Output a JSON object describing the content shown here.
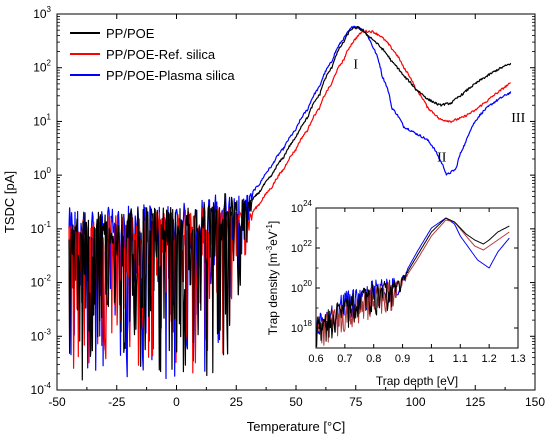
{
  "chart_data": [
    {
      "type": "line",
      "xlabel": "Temperature [°C]",
      "ylabel": "TSDC [pA]",
      "xlim": [
        -50,
        150
      ],
      "ylim_log10": [
        -4,
        3
      ],
      "log_y": true,
      "grid": false,
      "legend_position": "top-left",
      "x_ticks": [
        "-50",
        "-25",
        "0",
        "25",
        "50",
        "75",
        "100",
        "125",
        "150"
      ],
      "y_ticks": [
        {
          "base": "10",
          "exp": "-4"
        },
        {
          "base": "10",
          "exp": "-3"
        },
        {
          "base": "10",
          "exp": "-2"
        },
        {
          "base": "10",
          "exp": "-1"
        },
        {
          "base": "10",
          "exp": "0"
        },
        {
          "base": "10",
          "exp": "1"
        },
        {
          "base": "10",
          "exp": "2"
        },
        {
          "base": "10",
          "exp": "3"
        }
      ],
      "annotations": [
        {
          "text": "I",
          "x": 75,
          "y": 120
        },
        {
          "text": "II",
          "x": 111,
          "y": 2.2
        },
        {
          "text": "III",
          "x": 143,
          "y": 12
        }
      ],
      "series": [
        {
          "name": "PP/POE",
          "color": "#000000",
          "x": [
            -45,
            -30,
            -15,
            0,
            10,
            15,
            20,
            25,
            30,
            35,
            40,
            45,
            50,
            55,
            60,
            65,
            70,
            73,
            76,
            80,
            85,
            90,
            95,
            100,
            105,
            110,
            115,
            120,
            125,
            130,
            135,
            140
          ],
          "y": [
            0.06,
            0.06,
            0.07,
            0.07,
            0.09,
            0.1,
            0.13,
            0.17,
            0.26,
            0.5,
            1.0,
            2.2,
            5.0,
            12,
            32,
            100,
            300,
            520,
            560,
            400,
            250,
            130,
            70,
            40,
            26,
            20,
            22,
            33,
            50,
            70,
            95,
            120
          ],
          "noise_floor": 0.00015
        },
        {
          "name": "PP/POE-Ref. silica",
          "color": "#ff0000",
          "x": [
            -45,
            -30,
            -15,
            0,
            10,
            20,
            25,
            30,
            35,
            40,
            45,
            50,
            55,
            60,
            65,
            70,
            75,
            78,
            82,
            85,
            90,
            95,
            100,
            105,
            110,
            115,
            120,
            125,
            130,
            135,
            140
          ],
          "y": [
            0.05,
            0.05,
            0.06,
            0.06,
            0.07,
            0.09,
            0.11,
            0.15,
            0.3,
            0.6,
            1.3,
            3.0,
            7.0,
            18,
            50,
            140,
            350,
            480,
            470,
            400,
            230,
            100,
            40,
            18,
            11,
            10,
            12,
            16,
            24,
            36,
            52
          ],
          "noise_floor": 0.0002
        },
        {
          "name": "PP/POE-Plasma silica",
          "color": "#0000ff",
          "x": [
            -45,
            -30,
            -15,
            0,
            10,
            20,
            25,
            30,
            35,
            40,
            45,
            50,
            55,
            60,
            65,
            70,
            74,
            78,
            82,
            86,
            90,
            95,
            100,
            105,
            110,
            113,
            117,
            121,
            125,
            130,
            135,
            140
          ],
          "y": [
            0.07,
            0.07,
            0.08,
            0.08,
            0.1,
            0.14,
            0.2,
            0.35,
            0.7,
            1.5,
            3.2,
            7.0,
            17,
            45,
            130,
            350,
            600,
            520,
            250,
            70,
            18,
            8,
            6,
            4.5,
            2.0,
            1.0,
            1.3,
            4.0,
            10,
            18,
            26,
            35
          ],
          "noise_floor": 0.00015
        }
      ]
    },
    {
      "type": "line",
      "xlabel": "Trap depth [eV]",
      "ylabel": "Trap density [m-3eV-1]",
      "ylabel_parts": {
        "main": "Trap density [m",
        "sup1": "-3",
        "mid": "eV",
        "sup2": "-1",
        "end": "]"
      },
      "xlim": [
        0.6,
        1.3
      ],
      "ylim_log10": [
        17,
        24
      ],
      "log_y": true,
      "x_ticks": [
        "0.6",
        "0.7",
        "0.8",
        "0.9",
        "1",
        "1.1",
        "1.2",
        "1.3"
      ],
      "y_ticks": [
        {
          "base": "10",
          "exp": "18"
        },
        {
          "base": "10",
          "exp": "20"
        },
        {
          "base": "10",
          "exp": "22"
        },
        {
          "base": "10",
          "exp": "24"
        }
      ],
      "series": [
        {
          "name": "PP/POE",
          "color": "#000000",
          "x": [
            0.6,
            0.65,
            0.7,
            0.75,
            0.8,
            0.85,
            0.88,
            0.9,
            0.95,
            1.0,
            1.05,
            1.08,
            1.12,
            1.15,
            1.18,
            1.2,
            1.23,
            1.27
          ],
          "y_log10": [
            18.0,
            18.5,
            19.0,
            19.4,
            19.7,
            19.9,
            20.1,
            20.4,
            21.6,
            22.8,
            23.5,
            23.3,
            22.7,
            22.4,
            22.2,
            22.4,
            22.8,
            23.1
          ]
        },
        {
          "name": "PP/POE-Ref. silica",
          "color": "#b33a3a",
          "x": [
            0.6,
            0.65,
            0.7,
            0.75,
            0.8,
            0.85,
            0.88,
            0.9,
            0.95,
            1.0,
            1.05,
            1.08,
            1.12,
            1.15,
            1.18,
            1.2,
            1.23,
            1.27
          ],
          "y_log10": [
            18.0,
            18.4,
            18.9,
            19.3,
            19.6,
            19.8,
            20.0,
            20.3,
            21.4,
            22.6,
            23.4,
            23.3,
            22.6,
            22.1,
            21.9,
            22.1,
            22.4,
            22.8
          ]
        },
        {
          "name": "PP/POE-Plasma silica",
          "color": "#0000ff",
          "x": [
            0.6,
            0.65,
            0.7,
            0.75,
            0.8,
            0.85,
            0.88,
            0.9,
            0.95,
            1.0,
            1.05,
            1.08,
            1.1,
            1.13,
            1.16,
            1.18,
            1.2,
            1.23,
            1.27
          ],
          "y_log10": [
            18.2,
            18.7,
            19.3,
            19.7,
            19.9,
            20.0,
            20.2,
            20.5,
            21.8,
            23.0,
            23.5,
            23.2,
            22.6,
            22.0,
            21.4,
            21.2,
            21.0,
            21.8,
            22.5
          ]
        }
      ]
    }
  ]
}
